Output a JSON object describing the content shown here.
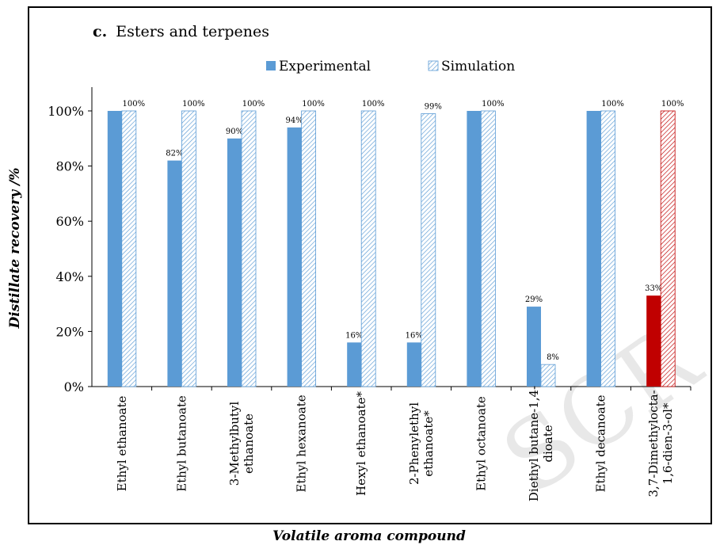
{
  "chart_data": {
    "type": "bar",
    "title_prefix": "c.",
    "title": "Esters and terpenes",
    "xlabel": "Volatile aroma compound",
    "ylabel": "Distillate recovery /%",
    "ylim": [
      0,
      100
    ],
    "yticks": [
      "0%",
      "20%",
      "40%",
      "60%",
      "80%",
      "100%"
    ],
    "ytick_values": [
      0,
      20,
      40,
      60,
      80,
      100
    ],
    "categories": [
      [
        "Ethyl ethanoate"
      ],
      [
        "Ethyl butanoate"
      ],
      [
        "3-Methylbutyl",
        "ethanoate"
      ],
      [
        "Ethyl hexanoate"
      ],
      [
        "Hexyl ethanoate*"
      ],
      [
        "2-Phenylethyl",
        "ethanoate*"
      ],
      [
        "Ethyl octanoate"
      ],
      [
        "Diethyl butane-1,4-",
        "dioate"
      ],
      [
        "Ethyl decanoate"
      ],
      [
        "3,7-Dimethylocta-",
        "1,6-dien-3-ol*"
      ]
    ],
    "series": [
      {
        "name": "Experimental",
        "values": [
          100,
          82,
          90,
          94,
          16,
          16,
          100,
          29,
          100,
          33
        ],
        "labels": [
          "",
          "82%",
          "90%",
          "94%",
          "16%",
          "16%",
          "",
          "29%",
          "",
          "33%"
        ]
      },
      {
        "name": "Simulation",
        "values": [
          100,
          100,
          100,
          100,
          100,
          99,
          100,
          8,
          100,
          100
        ],
        "labels": [
          "100%",
          "100%",
          "100%",
          "100%",
          "100%",
          "99%",
          "100%",
          "8%",
          "100%",
          "100%"
        ]
      }
    ],
    "highlight_index": 9,
    "legend_position": "top",
    "grid": false
  },
  "colors": {
    "experimental": "#5b9bd5",
    "simulation_hatch": "#5b9bd5",
    "highlight": "#c00000",
    "axis": "#000000"
  },
  "watermark": "SCR"
}
